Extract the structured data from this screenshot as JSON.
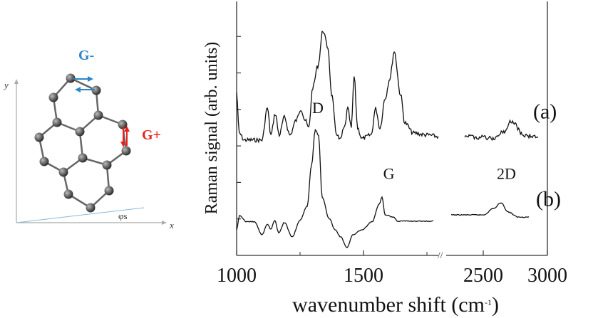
{
  "diagram": {
    "axis_x_label": "x",
    "axis_y_label": "y",
    "angle_label": "φs",
    "mode_minus_label": "G-",
    "mode_plus_label": "G+",
    "mode_minus_color": "#2a86c8",
    "mode_plus_color": "#e8211f",
    "atom_color": "#555555"
  },
  "chart_data": {
    "type": "line",
    "title": "",
    "xlabel": "wavenumber shift (cm",
    "xlabel_sup": "-1",
    "xlabel_end": ")",
    "ylabel": "Raman signal (arb. units)",
    "x_segments": [
      [
        1000,
        1800
      ],
      [
        2200,
        3000
      ]
    ],
    "ylim": [
      0,
      7
    ],
    "x_ticks": [
      "1000",
      "1500",
      "2500",
      "3000"
    ],
    "x_tick_values": [
      1000,
      1500,
      2500,
      3000
    ],
    "x_minor_ticks": [
      1250,
      1750
    ],
    "y_ticks": [
      1,
      2,
      3,
      4,
      5,
      6
    ],
    "axis_break": "//",
    "peak_labels": [
      {
        "text": "D",
        "x": 1320,
        "y": 3.9
      },
      {
        "text": "G",
        "x": 1600,
        "y": 2.1
      },
      {
        "text": "2D",
        "x": 2680,
        "y": 2.1
      }
    ],
    "series": [
      {
        "name": "(a)",
        "label_y": 3.95,
        "points": [
          [
            1000,
            4.46
          ],
          [
            1010,
            3.35
          ],
          [
            1030,
            3.16
          ],
          [
            1100,
            3.16
          ],
          [
            1121,
            4.04
          ],
          [
            1135,
            3.3
          ],
          [
            1152,
            3.88
          ],
          [
            1168,
            3.3
          ],
          [
            1188,
            3.78
          ],
          [
            1210,
            3.3
          ],
          [
            1235,
            3.7
          ],
          [
            1253,
            4.02
          ],
          [
            1270,
            3.7
          ],
          [
            1284,
            3.49
          ],
          [
            1300,
            4.6
          ],
          [
            1320,
            5.19
          ],
          [
            1340,
            6.16
          ],
          [
            1360,
            5.69
          ],
          [
            1374,
            4.41
          ],
          [
            1393,
            3.35
          ],
          [
            1407,
            3.16
          ],
          [
            1425,
            3.5
          ],
          [
            1438,
            4.02
          ],
          [
            1452,
            3.49
          ],
          [
            1463,
            4.89
          ],
          [
            1477,
            3.49
          ],
          [
            1494,
            3.2
          ],
          [
            1530,
            3.3
          ],
          [
            1548,
            4.02
          ],
          [
            1565,
            3.49
          ],
          [
            1585,
            4.3
          ],
          [
            1604,
            4.85
          ],
          [
            1621,
            5.59
          ],
          [
            1646,
            4.41
          ],
          [
            1663,
            3.63
          ],
          [
            1697,
            3.35
          ],
          [
            1750,
            3.3
          ],
          [
            1795,
            3.26
          ]
        ],
        "points_right": [
          [
            2356,
            3.29
          ],
          [
            2450,
            3.24
          ],
          [
            2583,
            3.2
          ],
          [
            2660,
            3.4
          ],
          [
            2722,
            3.68
          ],
          [
            2817,
            3.29
          ],
          [
            2928,
            3.24
          ]
        ]
      },
      {
        "name": "(b)",
        "label_y": 1.55,
        "points": [
          [
            1000,
            0.7
          ],
          [
            1011,
            1.09
          ],
          [
            1040,
            0.92
          ],
          [
            1070,
            0.92
          ],
          [
            1100,
            0.57
          ],
          [
            1121,
            0.86
          ],
          [
            1135,
            0.72
          ],
          [
            1150,
            0.96
          ],
          [
            1166,
            0.62
          ],
          [
            1188,
            0.9
          ],
          [
            1219,
            0.51
          ],
          [
            1250,
            0.96
          ],
          [
            1278,
            1.35
          ],
          [
            1295,
            2.46
          ],
          [
            1310,
            3.45
          ],
          [
            1323,
            3.29
          ],
          [
            1337,
            1.6
          ],
          [
            1365,
            1.01
          ],
          [
            1388,
            0.7
          ],
          [
            1410,
            0.51
          ],
          [
            1435,
            0.21
          ],
          [
            1458,
            0.57
          ],
          [
            1494,
            0.7
          ],
          [
            1534,
            0.92
          ],
          [
            1562,
            1.4
          ],
          [
            1573,
            1.6
          ],
          [
            1585,
            1.11
          ],
          [
            1618,
            1.05
          ],
          [
            1635,
            0.94
          ],
          [
            1775,
            0.94
          ]
        ],
        "points_right": [
          [
            2250,
            1.11
          ],
          [
            2500,
            1.11
          ],
          [
            2583,
            1.29
          ],
          [
            2639,
            1.44
          ],
          [
            2694,
            1.19
          ],
          [
            2772,
            1.05
          ],
          [
            2856,
            1.05
          ]
        ]
      }
    ]
  }
}
